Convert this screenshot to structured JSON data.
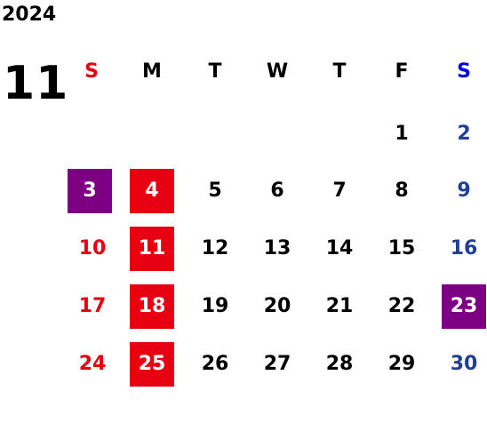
{
  "year": "2024",
  "month": "11",
  "colors": {
    "sunday": "#e60012",
    "saturday_header": "#0000e6",
    "saturday": "#1f3f99",
    "weekday": "#000000",
    "holiday_box": "#e60012",
    "highlight_box": "#7d0083",
    "box_text": "#ffffff"
  },
  "weekdays": [
    "S",
    "M",
    "T",
    "W",
    "T",
    "F",
    "S"
  ],
  "weeks": [
    [
      "",
      "",
      "",
      "",
      "",
      "1",
      "2"
    ],
    [
      "3",
      "4",
      "5",
      "6",
      "7",
      "8",
      "9"
    ],
    [
      "10",
      "11",
      "12",
      "13",
      "14",
      "15",
      "16"
    ],
    [
      "17",
      "18",
      "19",
      "20",
      "21",
      "22",
      "23"
    ],
    [
      "24",
      "25",
      "26",
      "27",
      "28",
      "29",
      "30"
    ]
  ],
  "holidays": [
    "4",
    "11",
    "18",
    "25"
  ],
  "highlighted": [
    "3",
    "23"
  ]
}
